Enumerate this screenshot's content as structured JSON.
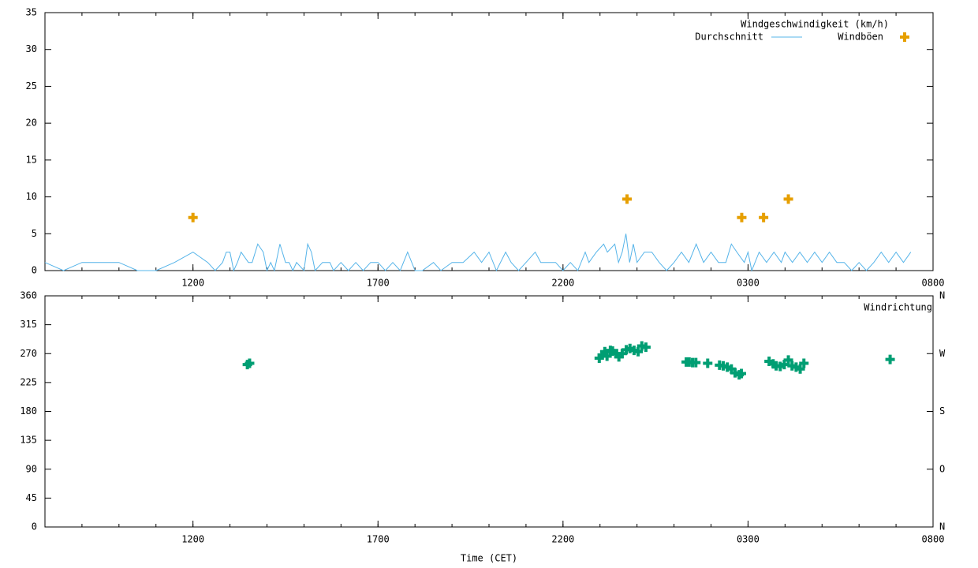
{
  "chart_data": [
    {
      "type": "line",
      "legend_title": "Windgeschwindigkeit (km/h)",
      "xlim": [
        8,
        32
      ],
      "xticks": [
        {
          "value": 12,
          "label": "1200"
        },
        {
          "value": 17,
          "label": "1700"
        },
        {
          "value": 22,
          "label": "2200"
        },
        {
          "value": 27,
          "label": "0300"
        },
        {
          "value": 32,
          "label": "0800"
        }
      ],
      "ylim": [
        0,
        35
      ],
      "yticks": [
        0,
        5,
        10,
        15,
        20,
        25,
        30,
        35
      ],
      "series": [
        {
          "name": "Durchschnitt",
          "type": "line",
          "color": "#56b4e9",
          "x": [
            8.0,
            8.5,
            9.0,
            9.5,
            10.0,
            10.5,
            11.0,
            11.5,
            12.0,
            12.4,
            12.6,
            12.8,
            12.9,
            13.0,
            13.1,
            13.2,
            13.3,
            13.5,
            13.6,
            13.75,
            13.9,
            14.0,
            14.1,
            14.2,
            14.35,
            14.5,
            14.6,
            14.7,
            14.8,
            15.0,
            15.1,
            15.2,
            15.3,
            15.5,
            15.7,
            15.8,
            16.0,
            16.2,
            16.4,
            16.6,
            16.8,
            17.0,
            17.2,
            17.4,
            17.6,
            17.8,
            18.0,
            18.2,
            18.5,
            18.7,
            19.0,
            19.3,
            19.6,
            19.8,
            20.0,
            20.2,
            20.45,
            20.6,
            20.8,
            21.0,
            21.25,
            21.4,
            21.6,
            21.8,
            22.0,
            22.2,
            22.4,
            22.6,
            22.7,
            22.9,
            23.1,
            23.2,
            23.4,
            23.5,
            23.6,
            23.7,
            23.8,
            23.9,
            24.0,
            24.2,
            24.4,
            24.6,
            24.8,
            25.0,
            25.2,
            25.4,
            25.6,
            25.8,
            26.0,
            26.2,
            26.4,
            26.55,
            26.7,
            26.9,
            27.0,
            27.1,
            27.3,
            27.5,
            27.7,
            27.9,
            28.0,
            28.2,
            28.4,
            28.6,
            28.8,
            29.0,
            29.2,
            29.4,
            29.6,
            29.8,
            30.0,
            30.2,
            30.4,
            30.6,
            30.8,
            31.0,
            31.2,
            31.4
          ],
          "values": [
            1.1,
            0,
            1.1,
            1.1,
            1.1,
            0,
            0,
            1.1,
            2.5,
            1.1,
            0,
            1.1,
            2.5,
            2.5,
            0,
            1.1,
            2.5,
            1.1,
            1.1,
            3.6,
            2.5,
            0,
            1.1,
            0,
            3.6,
            1.1,
            1.1,
            0,
            1.1,
            0,
            3.6,
            2.5,
            0,
            1.1,
            1.1,
            0,
            1.1,
            0,
            1.1,
            0,
            1.1,
            1.1,
            0,
            1.1,
            0,
            2.5,
            0,
            0,
            1.1,
            0,
            1.1,
            1.1,
            2.5,
            1.1,
            2.5,
            0,
            2.5,
            1.1,
            0,
            1.1,
            2.5,
            1.1,
            1.1,
            1.1,
            0,
            1.1,
            0,
            2.5,
            1.1,
            2.5,
            3.6,
            2.5,
            3.6,
            1.1,
            2.5,
            5,
            1.1,
            3.6,
            1.1,
            2.5,
            2.5,
            1.1,
            0,
            1.1,
            2.5,
            1.1,
            3.6,
            1.1,
            2.5,
            1.1,
            1.1,
            3.6,
            2.5,
            1.1,
            2.5,
            0,
            2.5,
            1.1,
            2.5,
            1.1,
            2.5,
            1.1,
            2.5,
            1.1,
            2.5,
            1.1,
            2.5,
            1.1,
            1.1,
            0,
            1.1,
            0,
            1.1,
            2.5,
            1.1,
            2.5,
            1.1,
            2.5
          ]
        },
        {
          "name": "Windböen",
          "type": "scatter",
          "color": "#e69f00",
          "x": [
            12.0,
            23.73,
            26.83,
            27.42,
            28.09
          ],
          "values": [
            7.2,
            9.7,
            7.2,
            7.2,
            9.7
          ]
        }
      ]
    },
    {
      "type": "scatter",
      "xlabel": "Time (CET)",
      "xlim": [
        8,
        32
      ],
      "xticks": [
        {
          "value": 12,
          "label": "1200"
        },
        {
          "value": 17,
          "label": "1700"
        },
        {
          "value": 22,
          "label": "2200"
        },
        {
          "value": 27,
          "label": "0300"
        },
        {
          "value": 32,
          "label": "0800"
        }
      ],
      "ylim": [
        0,
        360
      ],
      "yticks": [
        0,
        45,
        90,
        135,
        180,
        225,
        270,
        315,
        360
      ],
      "y2lim": [
        0,
        360
      ],
      "y2ticks": [
        {
          "value": 0,
          "label": "N"
        },
        {
          "value": 90,
          "label": "O"
        },
        {
          "value": 180,
          "label": "S"
        },
        {
          "value": 270,
          "label": "W"
        },
        {
          "value": 360,
          "label": "N"
        }
      ],
      "series": [
        {
          "name": "Windrichtung",
          "type": "scatter",
          "color": "#009e73",
          "x": [
            13.47,
            13.53,
            22.98,
            23.06,
            23.13,
            23.19,
            23.28,
            23.34,
            23.45,
            23.51,
            23.6,
            23.71,
            23.81,
            23.92,
            24.03,
            24.13,
            24.24,
            25.33,
            25.41,
            25.5,
            25.59,
            25.91,
            26.23,
            26.33,
            26.44,
            26.55,
            26.65,
            26.76,
            26.82,
            27.57,
            27.68,
            27.76,
            27.87,
            27.98,
            28.09,
            28.19,
            28.3,
            28.41,
            28.51,
            30.84
          ],
          "values": [
            253,
            255,
            263,
            268,
            273,
            266,
            275,
            274,
            270,
            265,
            270,
            276,
            278,
            275,
            273,
            282,
            280,
            257,
            257,
            256,
            256,
            255,
            252,
            251,
            249,
            246,
            240,
            237,
            239,
            258,
            254,
            251,
            250,
            253,
            260,
            251,
            249,
            246,
            255,
            261
          ]
        }
      ]
    }
  ]
}
